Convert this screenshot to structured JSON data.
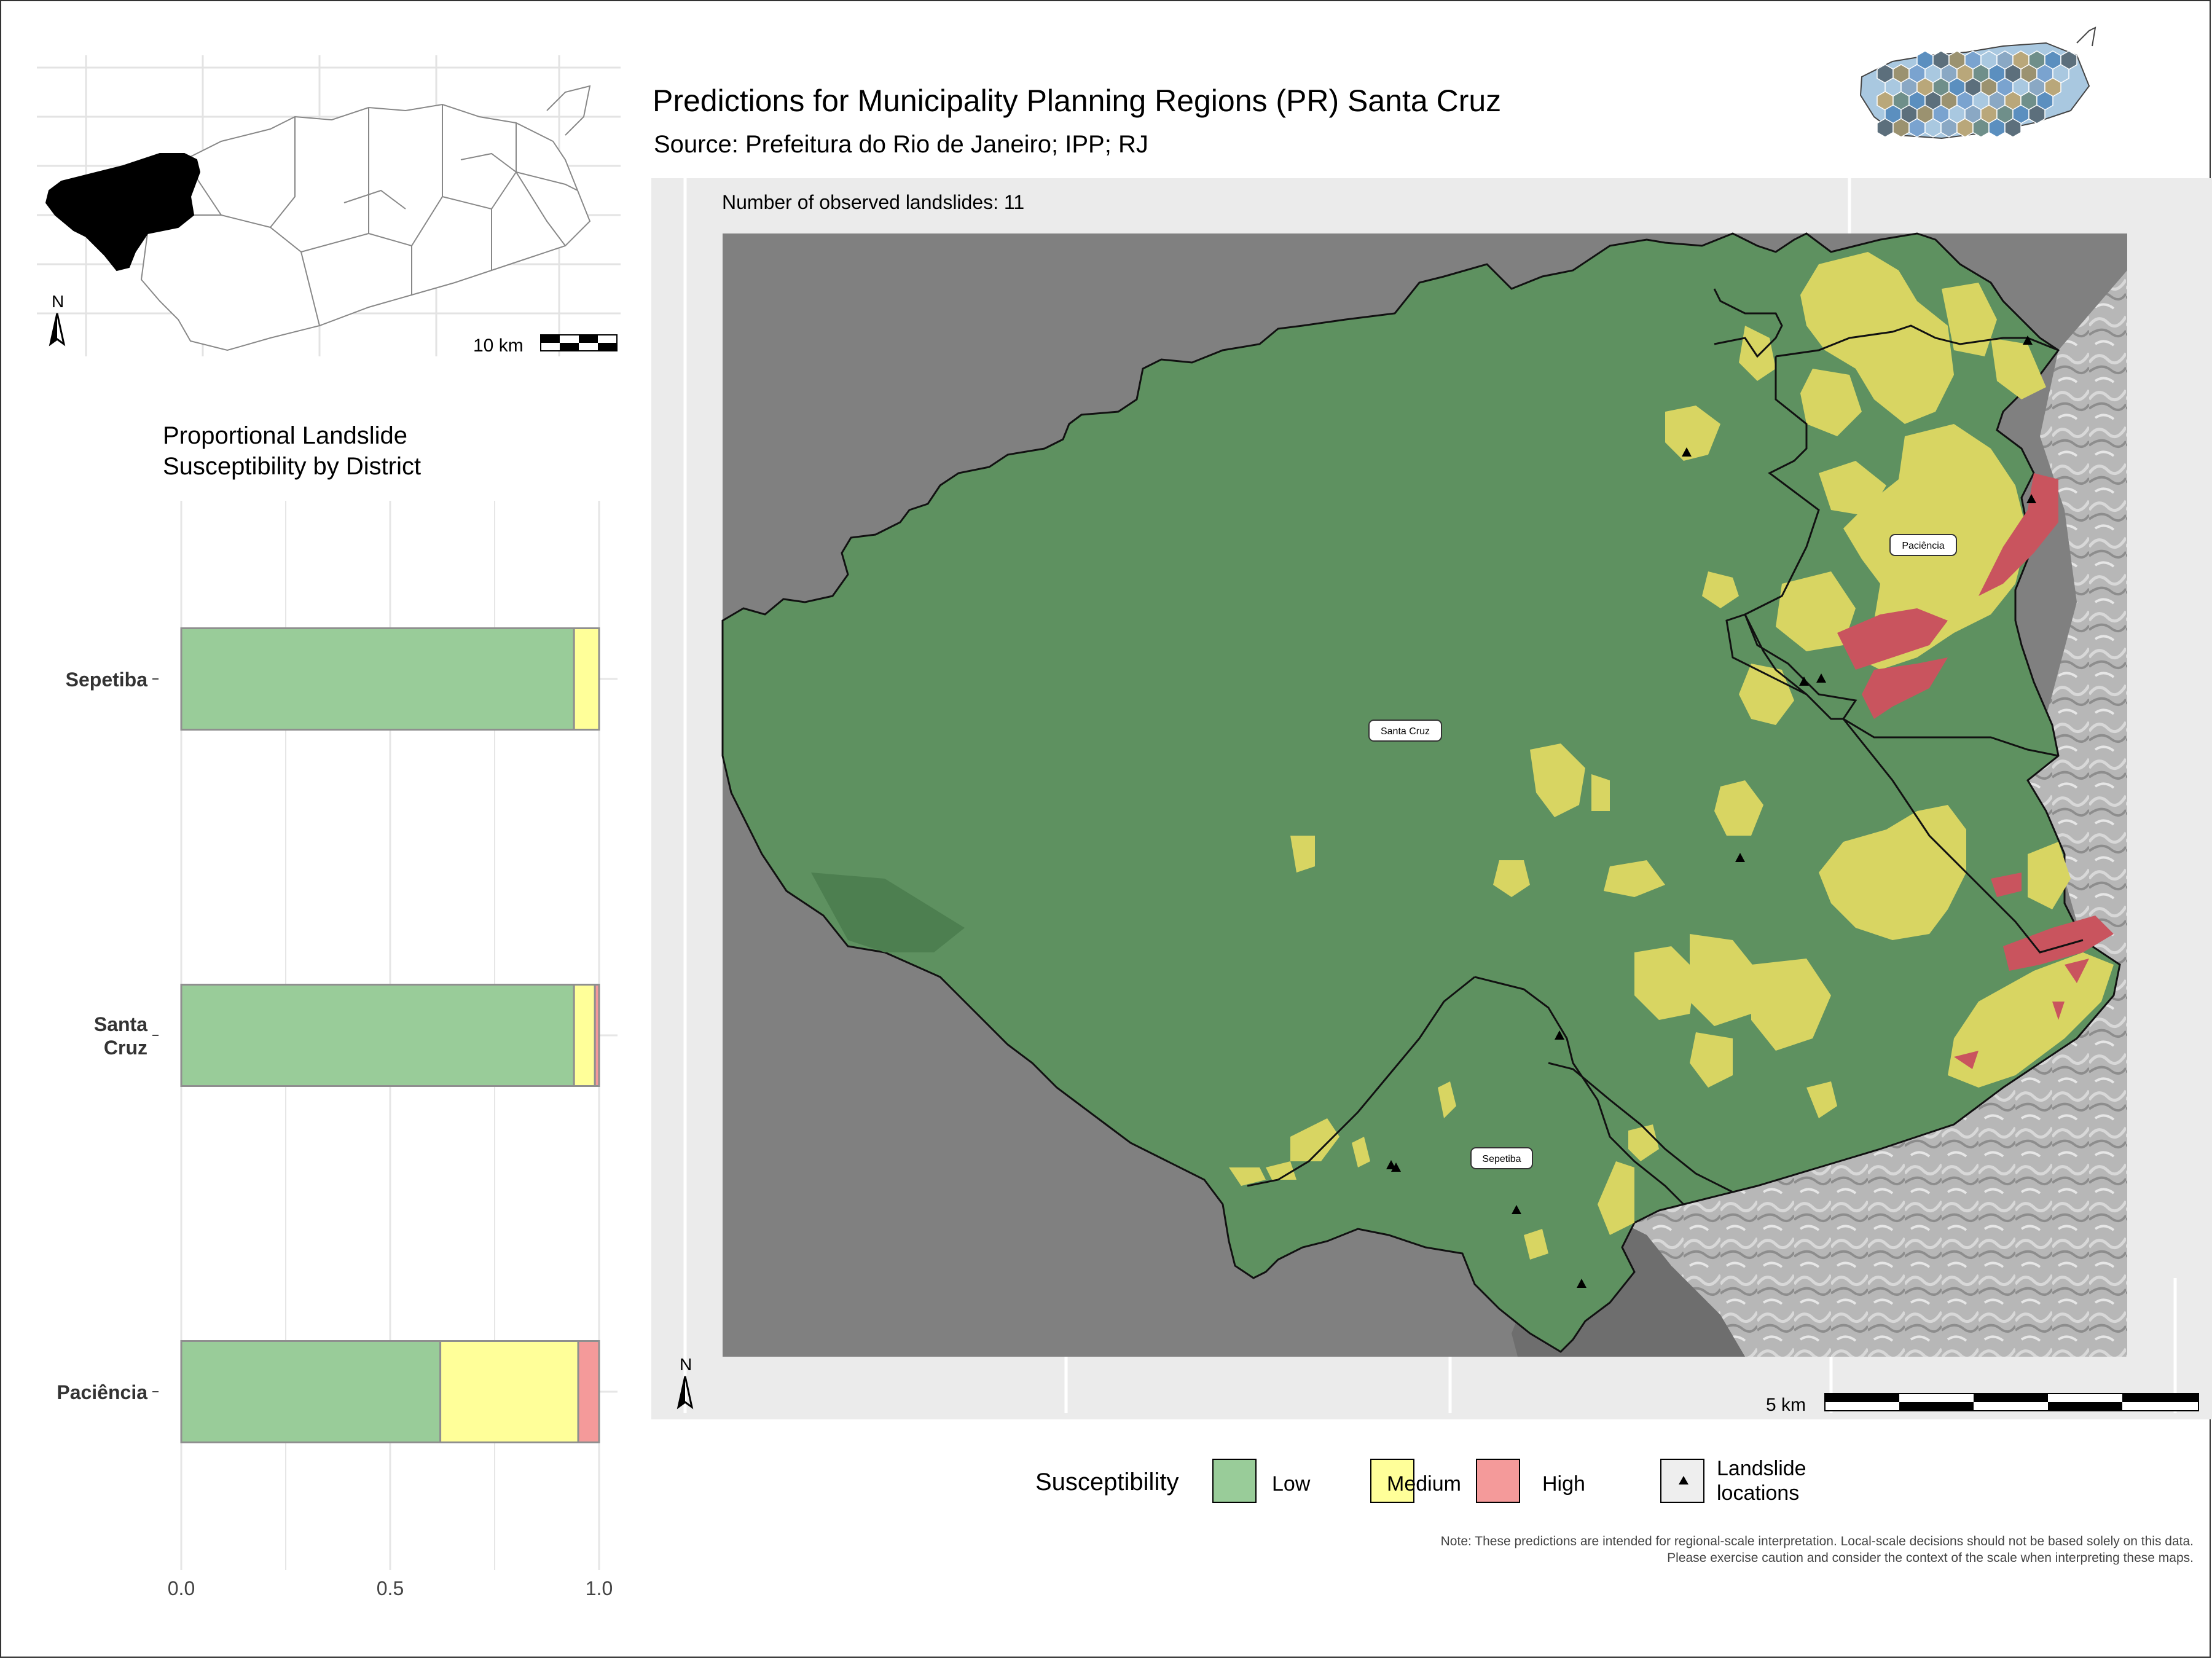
{
  "header": {
    "title": "Predictions for Municipality Planning Regions (PR) Santa Cruz",
    "subtitle": "Source: Prefeitura do Rio de Janeiro; IPP; RJ"
  },
  "inset_map": {
    "scale_label": "10 km",
    "north_label": "N"
  },
  "main_map": {
    "observed_label": "Number of observed landslides: 11",
    "scale_label": "5 km",
    "north_label": "N",
    "district_labels": [
      "Santa Cruz",
      "Paciência",
      "Sepetiba"
    ],
    "landslide_count": 11
  },
  "chart_data": {
    "type": "bar",
    "orientation": "horizontal",
    "stacked": true,
    "title": "Proportional Landslide Susceptibility by District",
    "title_lines": [
      "Proportional Landslide",
      "Susceptibility by District"
    ],
    "categories": [
      "Sepetiba",
      "Santa Cruz",
      "Paciência"
    ],
    "category_lines": [
      [
        "Sepetiba"
      ],
      [
        "Santa",
        "Cruz"
      ],
      [
        "Paciência"
      ]
    ],
    "series": [
      {
        "name": "Low",
        "values": [
          0.94,
          0.94,
          0.62
        ],
        "color": "#99cc99"
      },
      {
        "name": "Medium",
        "values": [
          0.06,
          0.05,
          0.33
        ],
        "color": "#ffff99"
      },
      {
        "name": "High",
        "values": [
          0.0,
          0.01,
          0.05
        ],
        "color": "#f49a9a"
      }
    ],
    "xlim": [
      0,
      1.0
    ],
    "xticks": [
      "0.0",
      "0.5",
      "1.0"
    ],
    "grid": true
  },
  "legend": {
    "title": "Susceptibility",
    "items": [
      {
        "label": "Low",
        "color": "#99cc99"
      },
      {
        "label": "Medium",
        "color": "#ffff99"
      },
      {
        "label": "High",
        "color": "#f49a9a"
      }
    ],
    "landslide_label_lines": [
      "Landslide",
      "locations"
    ]
  },
  "note": {
    "line1": "Note: These predictions are intended for regional-scale interpretation. Local-scale decisions should not be based solely on this data.",
    "line2": "Please exercise caution and consider the context of the scale when interpreting these maps."
  },
  "colors": {
    "low_fill": "#5e9160",
    "medium_fill": "#d8d562",
    "high_fill": "#c9545e",
    "ocean": "#808080",
    "panel_bg": "#ebebeb"
  }
}
